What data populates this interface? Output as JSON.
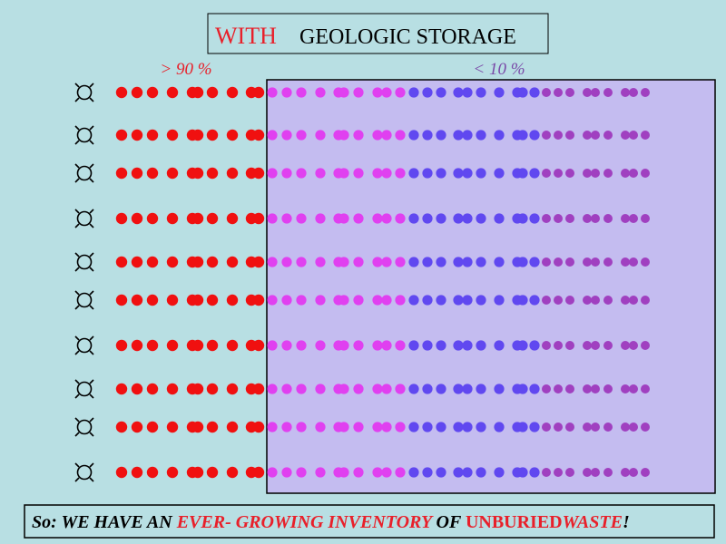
{
  "title": {
    "highlight": "WITH",
    "rest": "GEOLOGIC STORAGE"
  },
  "labels": {
    "left": "> 90 %",
    "right": "< 10 %"
  },
  "footer": [
    "So:",
    "WE HAVE AN",
    "EVER- GROWING INVENTORY",
    "OF",
    "UNBURIED",
    "WASTE",
    "!"
  ]
}
